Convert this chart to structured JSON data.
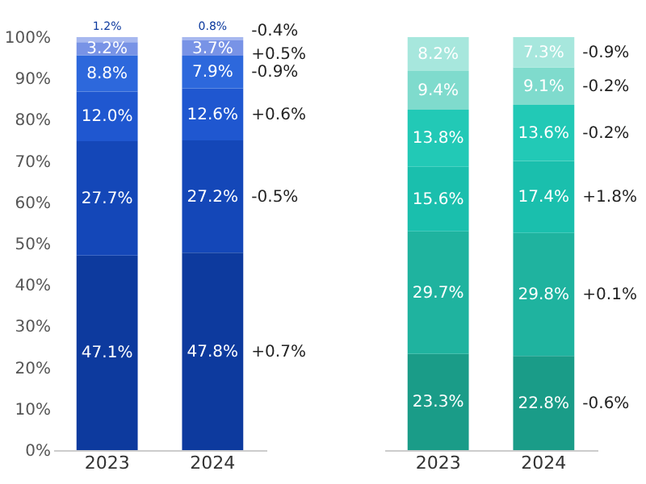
{
  "chart_data": [
    {
      "type": "bar",
      "stacked": true,
      "categories": [
        "2023",
        "2024"
      ],
      "ylim": [
        0,
        100
      ],
      "yticks": [
        {
          "value": 0,
          "label": "0%"
        },
        {
          "value": 10,
          "label": "10%"
        },
        {
          "value": 20,
          "label": "20%"
        },
        {
          "value": 30,
          "label": "30%"
        },
        {
          "value": 40,
          "label": "40%"
        },
        {
          "value": 50,
          "label": "50%"
        },
        {
          "value": 60,
          "label": "60%"
        },
        {
          "value": 70,
          "label": "70%"
        },
        {
          "value": 80,
          "label": "80%"
        },
        {
          "value": 90,
          "label": "90%"
        },
        {
          "value": 100,
          "label": "100%"
        }
      ],
      "series": [
        {
          "color": "#0d3a9e",
          "values": [
            47.1,
            47.8
          ],
          "value_labels": [
            "47.1%",
            "47.8%"
          ]
        },
        {
          "color": "#1447b8",
          "values": [
            27.7,
            27.2
          ],
          "value_labels": [
            "27.7%",
            "27.2%"
          ]
        },
        {
          "color": "#1f57d0",
          "values": [
            12.0,
            12.6
          ],
          "value_labels": [
            "12.0%",
            "12.6%"
          ]
        },
        {
          "color": "#2d68dc",
          "values": [
            8.8,
            7.9
          ],
          "value_labels": [
            "8.8%",
            "7.9%"
          ]
        },
        {
          "color": "#7893e6",
          "values": [
            3.2,
            3.7
          ],
          "value_labels": [
            "3.2%",
            "3.7%"
          ]
        },
        {
          "color": "#a7b8ef",
          "values": [
            1.2,
            0.8
          ],
          "value_labels": [
            "1.2%",
            "0.8%"
          ]
        }
      ],
      "annotations": [
        "+0.7%",
        "-0.5%",
        "+0.6%",
        "-0.9%",
        "+0.5%",
        "-0.4%"
      ]
    },
    {
      "type": "bar",
      "stacked": true,
      "categories": [
        "2023",
        "2024"
      ],
      "ylim": [
        0,
        100
      ],
      "tick_labels": "x",
      "series": [
        {
          "color": "#1a9c88",
          "values": [
            23.3,
            22.8
          ],
          "value_labels": [
            "23.3%",
            "22.8%"
          ]
        },
        {
          "color": "#1fb39f",
          "values": [
            29.7,
            29.8
          ],
          "value_labels": [
            "29.7%",
            "29.8%"
          ]
        },
        {
          "color": "#1abfad",
          "values": [
            15.6,
            17.4
          ],
          "value_labels": [
            "15.6%",
            "17.4%"
          ]
        },
        {
          "color": "#22c9b6",
          "values": [
            13.8,
            13.6
          ],
          "value_labels": [
            "13.8%",
            "13.6%"
          ]
        },
        {
          "color": "#7fdbcd",
          "values": [
            9.4,
            9.1
          ],
          "value_labels": [
            "9.4%",
            "9.1%"
          ]
        },
        {
          "color": "#a7e7dd",
          "values": [
            8.2,
            7.3
          ],
          "value_labels": [
            "8.2%",
            "7.3%"
          ]
        }
      ],
      "annotations": [
        "-0.6%",
        "+0.1%",
        "+1.8%",
        "-0.2%",
        "-0.2%",
        "-0.9%"
      ]
    }
  ]
}
